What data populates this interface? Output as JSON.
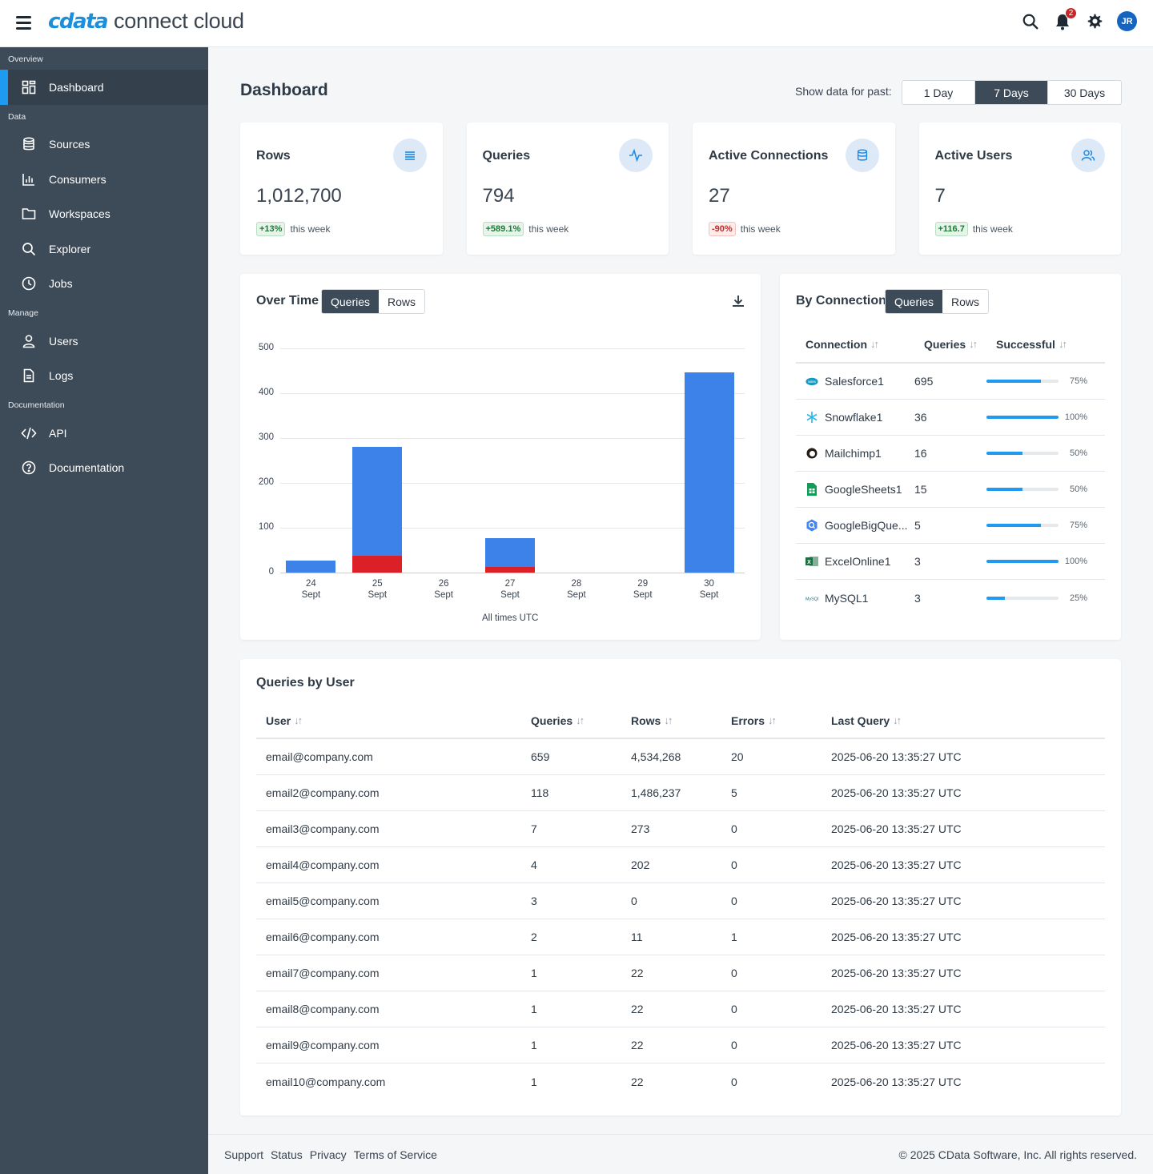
{
  "app": {
    "logo_mark": "cdata",
    "logo_text": "connect cloud",
    "notification_count": "2",
    "avatar_initials": "JR"
  },
  "sidebar": {
    "sections": [
      {
        "label": "Overview",
        "items": [
          {
            "label": "Dashboard",
            "icon": "dashboard-icon",
            "active": true
          }
        ]
      },
      {
        "label": "Data",
        "items": [
          {
            "label": "Sources",
            "icon": "database-icon"
          },
          {
            "label": "Consumers",
            "icon": "bar-chart-icon"
          },
          {
            "label": "Workspaces",
            "icon": "folder-icon"
          },
          {
            "label": "Explorer",
            "icon": "search-icon"
          },
          {
            "label": "Jobs",
            "icon": "clock-icon"
          }
        ]
      },
      {
        "label": "Manage",
        "items": [
          {
            "label": "Users",
            "icon": "user-icon"
          },
          {
            "label": "Logs",
            "icon": "document-icon"
          }
        ]
      },
      {
        "label": "Documentation",
        "items": [
          {
            "label": "API",
            "icon": "code-icon"
          },
          {
            "label": "Documentation",
            "icon": "help-icon"
          }
        ]
      }
    ]
  },
  "header": {
    "title": "Dashboard",
    "range_label": "Show data for past:",
    "ranges": [
      "1 Day",
      "7 Days",
      "30 Days"
    ],
    "active_range": "7 Days"
  },
  "stats": [
    {
      "title": "Rows",
      "value": "1,012,700",
      "change": "+13%",
      "direction": "up",
      "suffix": "this week",
      "icon": "list-icon"
    },
    {
      "title": "Queries",
      "value": "794",
      "change": "+589.1%",
      "direction": "up",
      "suffix": "this week",
      "icon": "activity-icon"
    },
    {
      "title": "Active Connections",
      "value": "27",
      "change": "-90%",
      "direction": "down",
      "suffix": "this week",
      "icon": "database-icon"
    },
    {
      "title": "Active Users",
      "value": "7",
      "change": "+116.7",
      "direction": "up",
      "suffix": "this week",
      "icon": "users-icon"
    }
  ],
  "over_time": {
    "title": "Over Time",
    "toggle": [
      "Queries",
      "Rows"
    ],
    "active": "Queries",
    "footnote": "All times UTC"
  },
  "chart_data": {
    "type": "bar",
    "stacked": true,
    "categories": [
      "24 Sept",
      "25 Sept",
      "26 Sept",
      "27 Sept",
      "28 Sept",
      "29 Sept",
      "30 Sept"
    ],
    "category_lines": [
      [
        "24",
        "Sept"
      ],
      [
        "25",
        "Sept"
      ],
      [
        "26",
        "Sept"
      ],
      [
        "27",
        "Sept"
      ],
      [
        "28",
        "Sept"
      ],
      [
        "29",
        "Sept"
      ],
      [
        "30",
        "Sept"
      ]
    ],
    "series": [
      {
        "values": [
          27,
          243,
          0,
          65,
          0,
          0,
          446
        ],
        "color": "#3c82e8"
      },
      {
        "values": [
          0,
          38,
          0,
          12,
          0,
          0,
          0
        ],
        "color": "#dc2028"
      }
    ],
    "yticks": [
      0,
      100,
      200,
      300,
      400,
      500
    ],
    "ylim": [
      0,
      500
    ],
    "grid": true
  },
  "by_connection": {
    "title": "By Connection",
    "toggle": [
      "Queries",
      "Rows"
    ],
    "active": "Queries",
    "headers": [
      "Connection",
      "Queries",
      "Successful"
    ],
    "rows": [
      {
        "name": "Salesforce1",
        "queries": "695",
        "pct": 75,
        "pct_label": "75%",
        "logo_color": "#1798c1"
      },
      {
        "name": "Snowflake1",
        "queries": "36",
        "pct": 100,
        "pct_label": "100%",
        "logo_color": "#29b5e8"
      },
      {
        "name": "Mailchimp1",
        "queries": "16",
        "pct": 50,
        "pct_label": "50%",
        "logo_color": "#241c15"
      },
      {
        "name": "GoogleSheets1",
        "queries": "15",
        "pct": 50,
        "pct_label": "50%",
        "logo_color": "#0f9d58"
      },
      {
        "name": "GoogleBigQue...",
        "queries": "5",
        "pct": 75,
        "pct_label": "75%",
        "logo_color": "#4285f4"
      },
      {
        "name": "ExcelOnline1",
        "queries": "3",
        "pct": 100,
        "pct_label": "100%",
        "logo_color": "#1d6f42"
      },
      {
        "name": "MySQL1",
        "queries": "3",
        "pct": 25,
        "pct_label": "25%",
        "logo_color": "#00758f"
      }
    ]
  },
  "queries_by_user": {
    "title": "Queries by User",
    "headers": [
      "User",
      "Queries",
      "Rows",
      "Errors",
      "Last Query"
    ],
    "rows": [
      [
        "email@company.com",
        "659",
        "4,534,268",
        "20",
        "2025-06-20 13:35:27 UTC"
      ],
      [
        "email2@company.com",
        "118",
        "1,486,237",
        "5",
        "2025-06-20 13:35:27 UTC"
      ],
      [
        "email3@company.com",
        "7",
        "273",
        "0",
        "2025-06-20 13:35:27 UTC"
      ],
      [
        "email4@company.com",
        "4",
        "202",
        "0",
        "2025-06-20 13:35:27 UTC"
      ],
      [
        "email5@company.com",
        "3",
        "0",
        "0",
        "2025-06-20 13:35:27 UTC"
      ],
      [
        "email6@company.com",
        "2",
        "11",
        "1",
        "2025-06-20 13:35:27 UTC"
      ],
      [
        "email7@company.com",
        "1",
        "22",
        "0",
        "2025-06-20 13:35:27 UTC"
      ],
      [
        "email8@company.com",
        "1",
        "22",
        "0",
        "2025-06-20 13:35:27 UTC"
      ],
      [
        "email9@company.com",
        "1",
        "22",
        "0",
        "2025-06-20 13:35:27 UTC"
      ],
      [
        "email10@company.com",
        "1",
        "22",
        "0",
        "2025-06-20 13:35:27 UTC"
      ]
    ]
  },
  "footer": {
    "links": [
      "Support",
      "Status",
      "Privacy",
      "Terms of Service"
    ],
    "copyright": "© 2025 CData Software, Inc. All rights reserved."
  }
}
